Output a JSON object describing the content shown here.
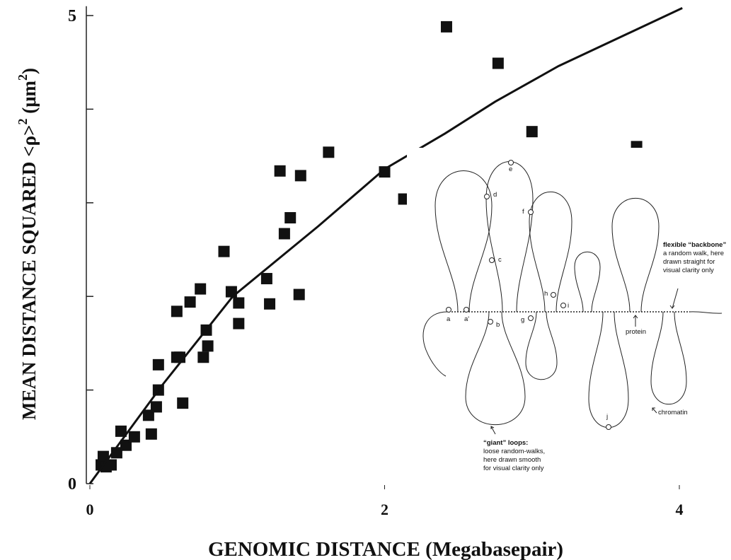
{
  "chart_data": {
    "type": "scatter",
    "xlabel": "GENOMIC DISTANCE (Megabasepair)",
    "ylabel": [
      "MEAN DISTANCE SQUARED <ρ>",
      "2",
      " (μm",
      "2",
      ")"
    ],
    "x": [
      0.077,
      0.091,
      0.11,
      0.144,
      0.182,
      0.211,
      0.245,
      0.302,
      0.398,
      0.417,
      0.451,
      0.465,
      0.465,
      0.59,
      0.59,
      0.61,
      0.63,
      0.68,
      0.75,
      0.77,
      0.79,
      0.8,
      0.91,
      0.96,
      1.01,
      1.01,
      1.2,
      1.22,
      1.29,
      1.32,
      1.36,
      1.42,
      1.43,
      1.62,
      2.0,
      2.13,
      2.42,
      2.77,
      3.0,
      3.71
    ],
    "y": [
      0.2,
      0.29,
      0.18,
      0.2,
      0.33,
      0.56,
      0.41,
      0.5,
      0.73,
      0.53,
      0.82,
      1.0,
      1.27,
      1.84,
      1.35,
      1.35,
      0.86,
      1.94,
      2.08,
      1.35,
      1.64,
      1.47,
      2.48,
      2.05,
      1.93,
      1.71,
      2.19,
      1.92,
      3.34,
      2.67,
      2.84,
      2.02,
      3.29,
      3.54,
      3.33,
      3.04,
      4.88,
      4.49,
      3.76,
      3.6
    ],
    "color": "#111111",
    "fit": {
      "x": [
        0,
        0.49,
        0.97,
        1.55,
        2.0,
        2.41,
        2.75,
        3.18,
        4.02
      ],
      "y": [
        0,
        1.05,
        2.0,
        2.75,
        3.36,
        3.74,
        4.08,
        4.46,
        5.08
      ]
    },
    "xlim": [
      0,
      4.05
    ],
    "ylim": [
      0,
      5.1
    ],
    "xticks": [
      0,
      2,
      4
    ],
    "yticks": [
      0,
      5
    ],
    "minor_yticks": [
      1,
      2,
      3,
      4
    ]
  },
  "inset": {
    "points": [
      "a",
      "a'",
      "b",
      "c",
      "d",
      "e",
      "f",
      "g",
      "h",
      "i",
      "j"
    ],
    "protein": "protein",
    "chromatin": "chromatin",
    "backbone": {
      "title": "flexible “backbone”",
      "lines": [
        "a random walk, here",
        "drawn straight for",
        "visual clarity only"
      ]
    },
    "giant_loops": {
      "title": "“giant” loops:",
      "lines": [
        "loose random-walks,",
        "here drawn smooth",
        "for visual clarity only"
      ]
    }
  }
}
